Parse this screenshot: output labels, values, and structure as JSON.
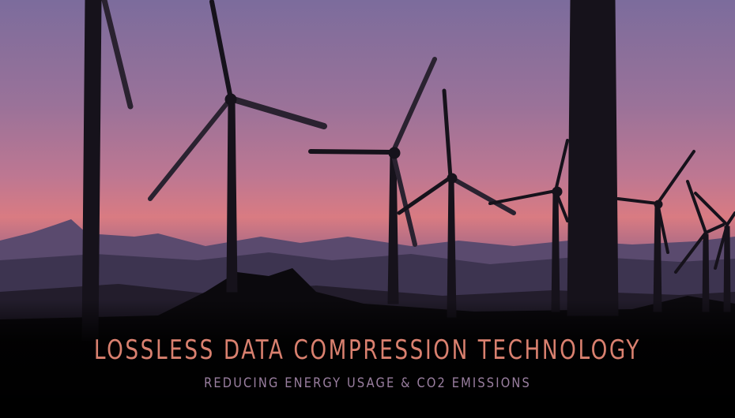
{
  "banner": {
    "title": "LOSSLESS DATA COMPRESSION TECHNOLOGY",
    "subtitle": "REDUCING ENERGY USAGE & CO2 EMISSIONS",
    "title_color": "#d9806f",
    "subtitle_color": "#9a7fa0"
  }
}
